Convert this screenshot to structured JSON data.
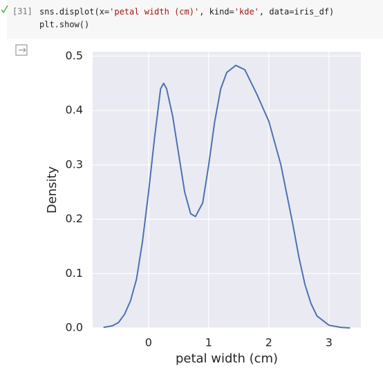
{
  "cell": {
    "execution_count": "[31]",
    "code": [
      [
        "sns.displot(x=",
        "'petal width (cm)'",
        ", kind=",
        "'kde'",
        ", data=iris_df)"
      ],
      [
        "plt.show()"
      ]
    ]
  },
  "chart_data": {
    "type": "line",
    "xlabel": "petal width (cm)",
    "ylabel": "Density",
    "x": [
      -0.75,
      -0.6,
      -0.5,
      -0.4,
      -0.3,
      -0.2,
      -0.1,
      0,
      0.1,
      0.2,
      0.25,
      0.3,
      0.4,
      0.5,
      0.6,
      0.7,
      0.78,
      0.9,
      1.0,
      1.1,
      1.2,
      1.3,
      1.45,
      1.6,
      1.8,
      2.0,
      2.2,
      2.4,
      2.5,
      2.6,
      2.7,
      2.8,
      3.0,
      3.2,
      3.35
    ],
    "series": [
      {
        "color": "#4c72b0",
        "values": [
          0.001,
          0.004,
          0.01,
          0.025,
          0.05,
          0.09,
          0.16,
          0.25,
          0.35,
          0.44,
          0.45,
          0.44,
          0.39,
          0.32,
          0.25,
          0.21,
          0.205,
          0.23,
          0.3,
          0.38,
          0.44,
          0.47,
          0.483,
          0.475,
          0.43,
          0.38,
          0.3,
          0.19,
          0.13,
          0.08,
          0.045,
          0.022,
          0.005,
          0.001,
          0.0
        ]
      }
    ],
    "xlim": [
      -0.93,
      3.53
    ],
    "ylim": [
      0,
      0.508
    ],
    "xticks": [
      0,
      1,
      2,
      3
    ],
    "yticks": [
      {
        "value": 0,
        "label": "0.0"
      },
      0.1,
      0.2,
      0.3,
      0.4,
      0.5
    ],
    "grid": true,
    "background": "#eaeaf2"
  }
}
